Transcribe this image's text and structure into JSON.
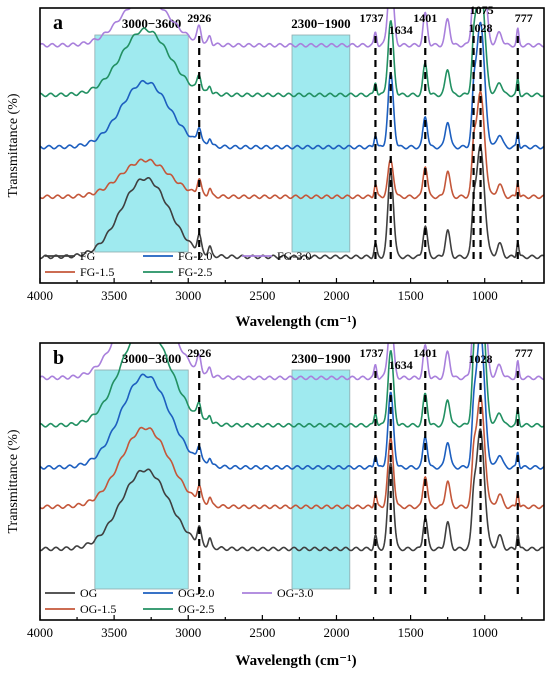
{
  "chart_data": [
    {
      "type": "line",
      "panel_label": "a",
      "xlabel": "Wavelength (cm⁻¹)",
      "ylabel": "Transmittance (%)",
      "xlim": [
        4000,
        600
      ],
      "x_reversed": true,
      "xticks": [
        4000,
        3500,
        3000,
        2500,
        2000,
        1500,
        1000
      ],
      "grid": false,
      "legend_position": "bottom-left",
      "shaded_regions": [
        {
          "label": "3000−3600",
          "from": 3630,
          "to": 3000
        },
        {
          "label": "2300−1900",
          "from": 2300,
          "to": 1910
        }
      ],
      "reference_lines": [
        {
          "label": "2926",
          "x": 2926
        },
        {
          "label": "1737",
          "x": 1737
        },
        {
          "label": "1634",
          "x": 1634
        },
        {
          "label": "1401",
          "x": 1401
        },
        {
          "label": "1075",
          "x": 1075
        },
        {
          "label": "1028",
          "x": 1028
        },
        {
          "label": "777",
          "x": 777
        }
      ],
      "series": [
        {
          "name": "FG",
          "color": "#3f3f3f",
          "offset": 0.1,
          "oh_depth": 0.3,
          "carbonyl_depth": 0.33,
          "co_depth": 0.42
        },
        {
          "name": "FG-1.5",
          "color": "#c4573a",
          "offset": 0.33,
          "oh_depth": 0.14,
          "carbonyl_depth": 0.14,
          "co_depth": 0.4
        },
        {
          "name": "FG-2.0",
          "color": "#1d5fbf",
          "offset": 0.52,
          "oh_depth": 0.25,
          "carbonyl_depth": 0.28,
          "co_depth": 0.48
        },
        {
          "name": "FG-2.5",
          "color": "#229062",
          "offset": 0.72,
          "oh_depth": 0.25,
          "carbonyl_depth": 0.28,
          "co_depth": 0.45
        },
        {
          "name": "FG-3.0",
          "color": "#a980dc",
          "offset": 0.91,
          "oh_depth": 0.18,
          "carbonyl_depth": 0.28,
          "co_depth": 0.52
        }
      ]
    },
    {
      "type": "line",
      "panel_label": "b",
      "xlabel": "Wavelength (cm⁻¹)",
      "ylabel": "Transmittance (%)",
      "xlim": [
        4000,
        600
      ],
      "x_reversed": true,
      "xticks": [
        4000,
        3500,
        3000,
        2500,
        2000,
        1500,
        1000
      ],
      "grid": false,
      "legend_position": "bottom-left",
      "shaded_regions": [
        {
          "label": "3000−3600",
          "from": 3630,
          "to": 3000
        },
        {
          "label": "2300−1900",
          "from": 2300,
          "to": 1910
        }
      ],
      "reference_lines": [
        {
          "label": "2926",
          "x": 2926
        },
        {
          "label": "1737",
          "x": 1737
        },
        {
          "label": "1634",
          "x": 1634
        },
        {
          "label": "1401",
          "x": 1401
        },
        {
          "label": "1028",
          "x": 1028
        },
        {
          "label": "777",
          "x": 777
        }
      ],
      "series": [
        {
          "name": "OG",
          "color": "#3f3f3f",
          "offset": 0.27,
          "oh_depth": 0.3,
          "carbonyl_depth": 0.33,
          "co_depth": 0.45
        },
        {
          "name": "OG-1.5",
          "color": "#c4573a",
          "offset": 0.43,
          "oh_depth": 0.3,
          "carbonyl_depth": 0.26,
          "co_depth": 0.42
        },
        {
          "name": "OG-2.0",
          "color": "#1d5fbf",
          "offset": 0.58,
          "oh_depth": 0.35,
          "carbonyl_depth": 0.28,
          "co_depth": 0.52
        },
        {
          "name": "OG-2.5",
          "color": "#229062",
          "offset": 0.74,
          "oh_depth": 0.38,
          "carbonyl_depth": 0.28,
          "co_depth": 0.6
        },
        {
          "name": "OG-3.0",
          "color": "#a980dc",
          "offset": 0.92,
          "oh_depth": 0.34,
          "carbonyl_depth": 0.22,
          "co_depth": 0.58
        }
      ]
    }
  ]
}
